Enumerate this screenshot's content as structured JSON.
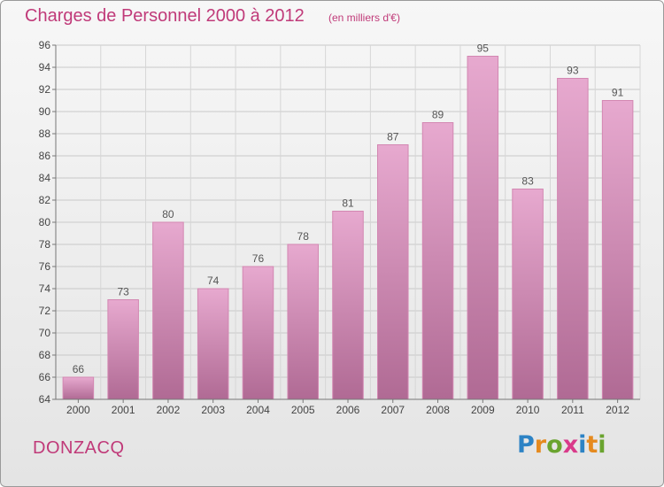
{
  "header": {
    "title": "Charges de Personnel 2000 à 2012",
    "subtitle": "(en milliers d'€)"
  },
  "footer": {
    "commune": "DONZACQ",
    "logo_text": "Proxiti",
    "logo_letters": [
      {
        "char": "P",
        "color": "#2d83c5"
      },
      {
        "char": "r",
        "color": "#e58a1f"
      },
      {
        "char": "o",
        "color": "#6aa42f"
      },
      {
        "char": "x",
        "color": "#d93a8a"
      },
      {
        "char": "i",
        "color": "#2d83c5"
      },
      {
        "char": "t",
        "color": "#e58a1f"
      },
      {
        "char": "i",
        "color": "#6aa42f"
      }
    ]
  },
  "chart_data": {
    "type": "bar",
    "title": "Charges de Personnel 2000 à 2012",
    "subtitle": "(en milliers d'€)",
    "categories": [
      "2000",
      "2001",
      "2002",
      "2003",
      "2004",
      "2005",
      "2006",
      "2007",
      "2008",
      "2009",
      "2010",
      "2011",
      "2012"
    ],
    "values": [
      66,
      73,
      80,
      74,
      76,
      78,
      81,
      87,
      89,
      95,
      83,
      93,
      91
    ],
    "ylim": [
      64,
      96
    ],
    "yticks": [
      64,
      66,
      68,
      70,
      72,
      74,
      76,
      78,
      80,
      82,
      84,
      86,
      88,
      90,
      92,
      94,
      96
    ],
    "xlabel": "",
    "ylabel": "",
    "grid": true,
    "bar_color_top": "#e7a9cf",
    "bar_color_bottom": "#b06a94",
    "bar_border": "#d387b2",
    "label_color": "#555555"
  }
}
